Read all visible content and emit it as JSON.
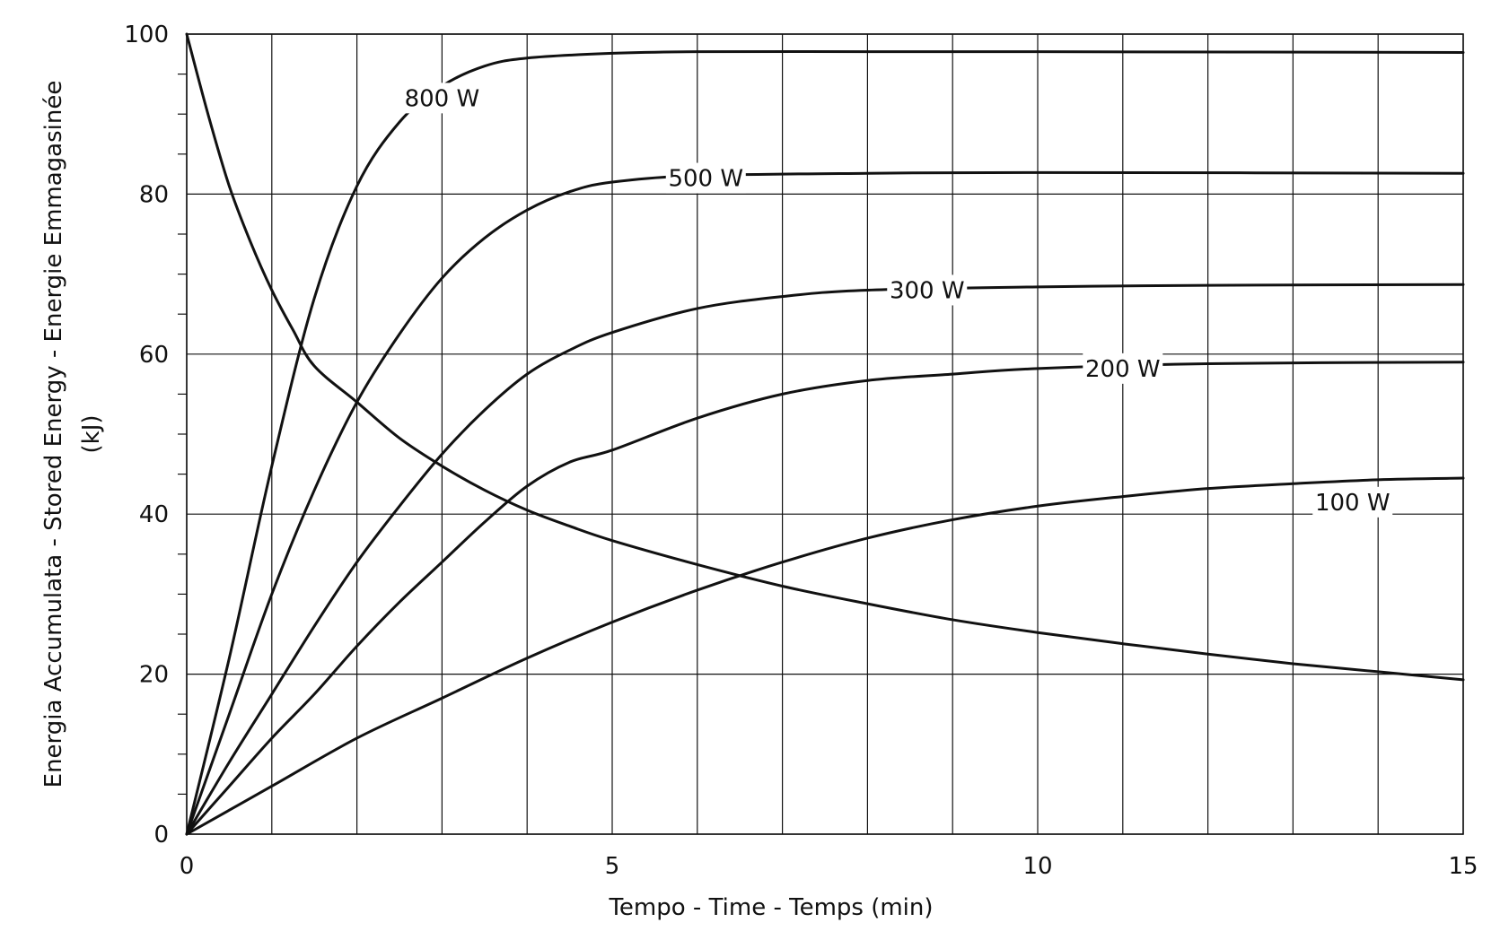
{
  "chart_data": {
    "type": "line",
    "xlabel": "Tempo - Time - Temps   (min)",
    "ylabel_lines": [
      "Energia Accumulata - Stored Energy - Energie Emmagasinée",
      "(kJ)"
    ],
    "xlim": [
      0,
      15
    ],
    "ylim": [
      0,
      100
    ],
    "x_ticks": [
      0,
      5,
      10,
      15
    ],
    "y_ticks": [
      0,
      20,
      40,
      60,
      80,
      100
    ],
    "x_grid_step": 1,
    "y_grid_step": 20,
    "y_minor_step": 5,
    "grid": true,
    "legend": "none",
    "series": [
      {
        "name": "800 W",
        "label_at": [
          3.0,
          92
        ],
        "points": [
          [
            0,
            0
          ],
          [
            0.5,
            22
          ],
          [
            1,
            46
          ],
          [
            1.5,
            67
          ],
          [
            2,
            81
          ],
          [
            2.5,
            89
          ],
          [
            3,
            93.5
          ],
          [
            3.5,
            96
          ],
          [
            4,
            97
          ],
          [
            5,
            97.6
          ],
          [
            6,
            97.8
          ],
          [
            8,
            97.8
          ],
          [
            10,
            97.8
          ],
          [
            15,
            97.7
          ]
        ]
      },
      {
        "name": "500 W",
        "label_at": [
          6.1,
          82
        ],
        "points": [
          [
            0,
            0
          ],
          [
            0.5,
            15
          ],
          [
            1,
            30
          ],
          [
            1.5,
            43
          ],
          [
            2,
            54
          ],
          [
            2.5,
            62.5
          ],
          [
            3,
            69.5
          ],
          [
            3.5,
            74.5
          ],
          [
            4,
            78
          ],
          [
            4.5,
            80.3
          ],
          [
            5,
            81.5
          ],
          [
            6,
            82.3
          ],
          [
            8,
            82.6
          ],
          [
            10,
            82.7
          ],
          [
            15,
            82.6
          ]
        ]
      },
      {
        "name": "300 W",
        "label_at": [
          8.7,
          68
        ],
        "points": [
          [
            0,
            0
          ],
          [
            0.5,
            9
          ],
          [
            1,
            17.5
          ],
          [
            1.5,
            26
          ],
          [
            2,
            34
          ],
          [
            2.5,
            41
          ],
          [
            3,
            47.5
          ],
          [
            3.5,
            53
          ],
          [
            4,
            57.5
          ],
          [
            4.5,
            60.5
          ],
          [
            5,
            62.7
          ],
          [
            6,
            65.7
          ],
          [
            7,
            67.2
          ],
          [
            8,
            68
          ],
          [
            10,
            68.4
          ],
          [
            12,
            68.6
          ],
          [
            15,
            68.7
          ]
        ]
      },
      {
        "name": "200 W",
        "label_at": [
          11.0,
          58.2
        ],
        "points": [
          [
            0,
            0
          ],
          [
            0.5,
            6
          ],
          [
            1,
            12
          ],
          [
            1.5,
            17.5
          ],
          [
            2,
            23.5
          ],
          [
            2.5,
            29
          ],
          [
            3,
            34
          ],
          [
            3.5,
            39
          ],
          [
            4,
            43.5
          ],
          [
            4.5,
            46.5
          ],
          [
            5,
            48
          ],
          [
            6,
            52
          ],
          [
            7,
            55
          ],
          [
            8,
            56.7
          ],
          [
            9,
            57.5
          ],
          [
            10,
            58.2
          ],
          [
            12,
            58.8
          ],
          [
            15,
            59
          ]
        ]
      },
      {
        "name": "100 W",
        "label_at": [
          13.7,
          41.5
        ],
        "points": [
          [
            0,
            0
          ],
          [
            1,
            6
          ],
          [
            2,
            12
          ],
          [
            3,
            17
          ],
          [
            4,
            22
          ],
          [
            5,
            26.5
          ],
          [
            6,
            30.5
          ],
          [
            7,
            34
          ],
          [
            8,
            37
          ],
          [
            9,
            39.3
          ],
          [
            10,
            41
          ],
          [
            11,
            42.2
          ],
          [
            12,
            43.2
          ],
          [
            13,
            43.8
          ],
          [
            14,
            44.3
          ],
          [
            15,
            44.5
          ]
        ]
      },
      {
        "name": "",
        "points": [
          [
            0,
            100
          ],
          [
            0.25,
            90
          ],
          [
            0.5,
            81
          ],
          [
            0.75,
            74
          ],
          [
            1,
            68
          ],
          [
            1.25,
            63
          ],
          [
            1.5,
            58.5
          ],
          [
            2,
            54
          ],
          [
            2.5,
            49.5
          ],
          [
            3,
            46
          ],
          [
            3.5,
            43
          ],
          [
            4,
            40.5
          ],
          [
            4.5,
            38.5
          ],
          [
            5,
            36.7
          ],
          [
            6,
            33.7
          ],
          [
            7,
            31
          ],
          [
            8,
            28.8
          ],
          [
            9,
            26.8
          ],
          [
            10,
            25.2
          ],
          [
            11,
            23.8
          ],
          [
            12,
            22.5
          ],
          [
            13,
            21.3
          ],
          [
            14,
            20.3
          ],
          [
            15,
            19.3
          ]
        ]
      }
    ]
  }
}
